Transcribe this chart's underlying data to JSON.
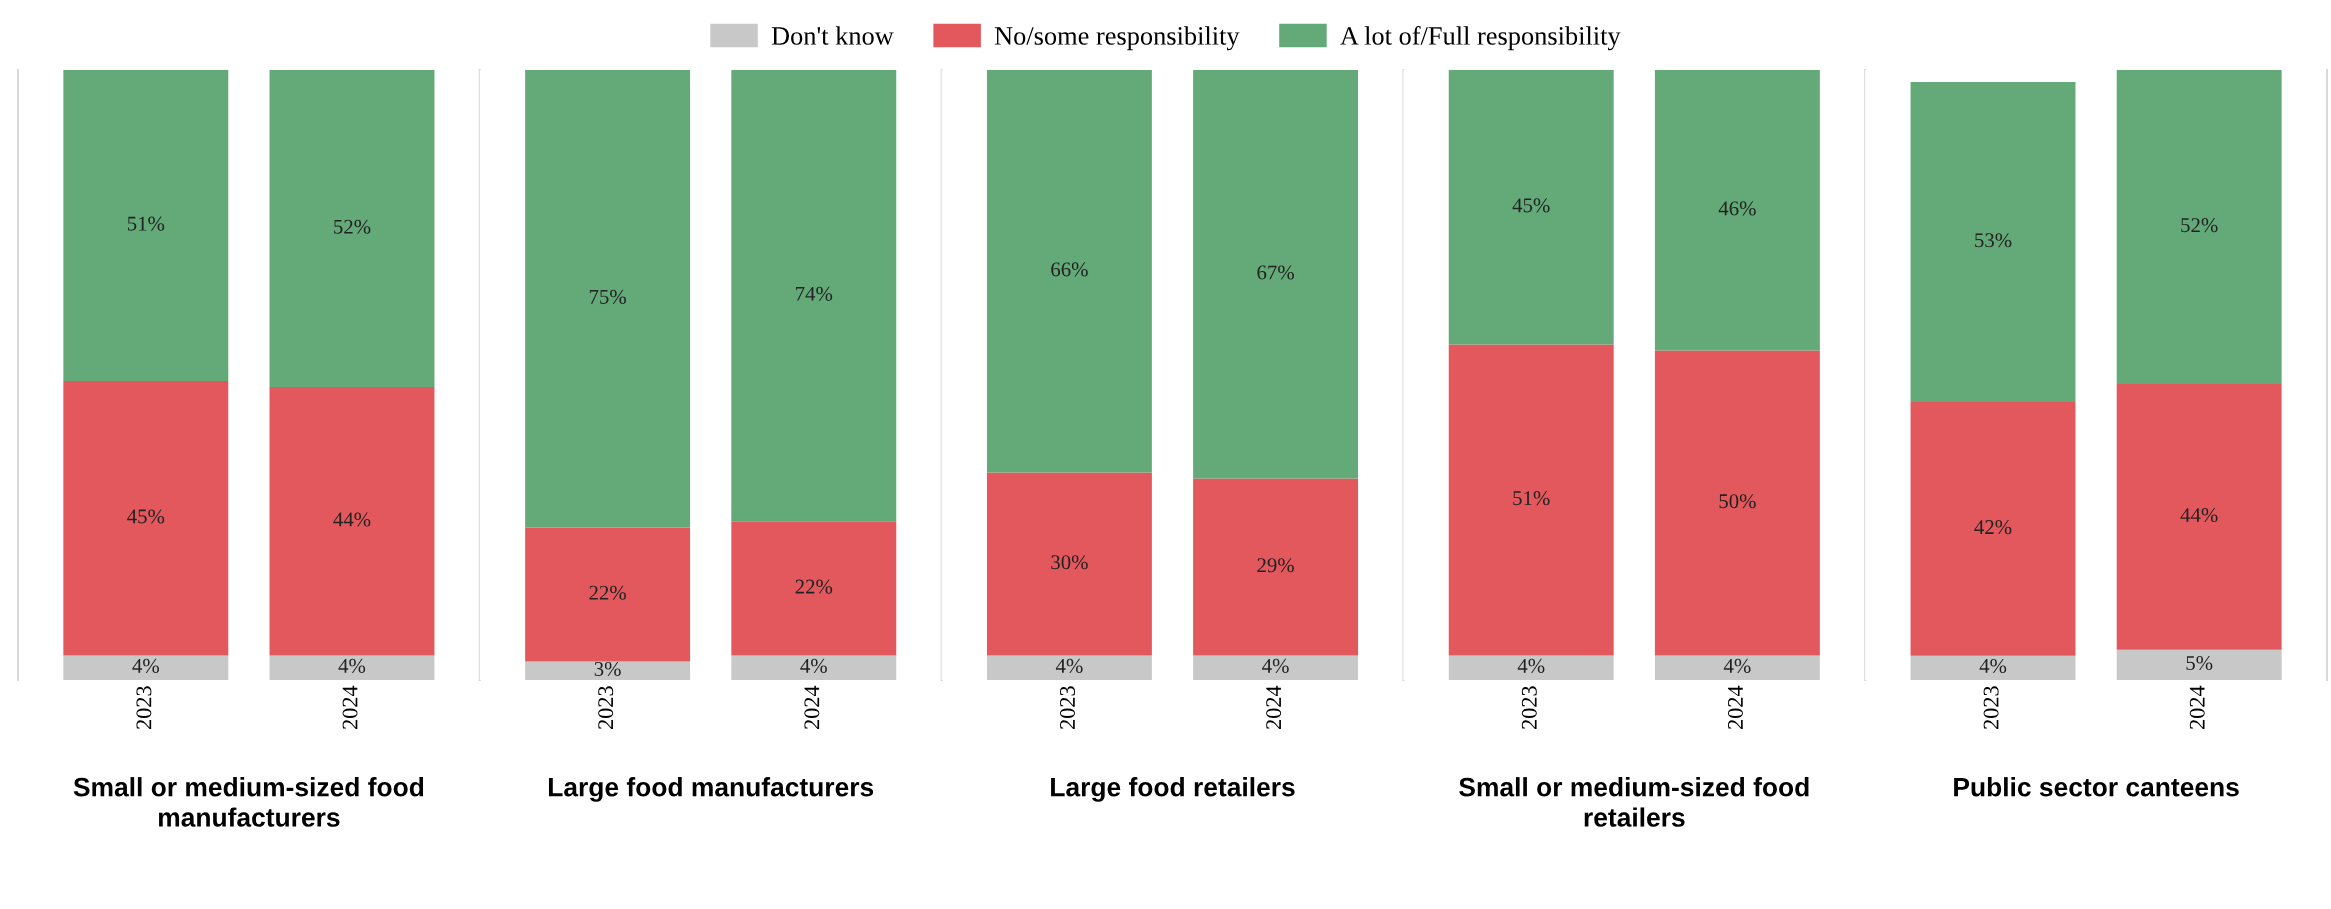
{
  "chart_data": [
    {
      "type": "bar",
      "stacked": true,
      "xlabel": "Small or medium-sized food manufacturers",
      "categories": [
        "2023",
        "2024"
      ],
      "tick_labels": "x",
      "legend": "top",
      "grid": false,
      "series": [
        {
          "name": "Don't know",
          "color": "#c8c8c8",
          "values": [
            4,
            4
          ],
          "value_labels": [
            "4%",
            "4%"
          ]
        },
        {
          "name": "No/some responsibility",
          "color": "#e2585d",
          "values": [
            45,
            44
          ],
          "value_labels": [
            "45%",
            "44%"
          ]
        },
        {
          "name": "A lot of/Full responsibility",
          "color": "#63aa78",
          "values": [
            51,
            52
          ],
          "value_labels": [
            "51%",
            "52%"
          ]
        }
      ]
    },
    {
      "type": "bar",
      "stacked": true,
      "xlabel": "Large food manufacturers",
      "categories": [
        "2023",
        "2024"
      ],
      "tick_labels": "x",
      "grid": false,
      "series": [
        {
          "color": "#c8c8c8",
          "values": [
            3,
            4
          ],
          "value_labels": [
            "3%",
            "4%"
          ]
        },
        {
          "color": "#e2585d",
          "values": [
            22,
            22
          ],
          "value_labels": [
            "22%",
            "22%"
          ]
        },
        {
          "color": "#63aa78",
          "values": [
            75,
            74
          ],
          "value_labels": [
            "75%",
            "74%"
          ]
        }
      ]
    },
    {
      "type": "bar",
      "stacked": true,
      "xlabel": "Large food retailers",
      "categories": [
        "2023",
        "2024"
      ],
      "tick_labels": "x",
      "grid": false,
      "series": [
        {
          "color": "#c8c8c8",
          "values": [
            4,
            4
          ],
          "value_labels": [
            "4%",
            "4%"
          ]
        },
        {
          "color": "#e2585d",
          "values": [
            30,
            29
          ],
          "value_labels": [
            "30%",
            "29%"
          ]
        },
        {
          "color": "#63aa78",
          "values": [
            66,
            67
          ],
          "value_labels": [
            "66%",
            "67%"
          ]
        }
      ]
    },
    {
      "type": "bar",
      "stacked": true,
      "xlabel": "Small or medium-sized food retailers",
      "categories": [
        "2023",
        "2024"
      ],
      "tick_labels": "x",
      "grid": false,
      "series": [
        {
          "color": "#c8c8c8",
          "values": [
            4,
            4
          ],
          "value_labels": [
            "4%",
            "4%"
          ]
        },
        {
          "color": "#e2585d",
          "values": [
            51,
            50
          ],
          "value_labels": [
            "51%",
            "50%"
          ]
        },
        {
          "color": "#63aa78",
          "values": [
            45,
            46
          ],
          "value_labels": [
            "45%",
            "46%"
          ]
        }
      ]
    },
    {
      "type": "bar",
      "stacked": true,
      "xlabel": "Public sector canteens",
      "categories": [
        "2023",
        "2024"
      ],
      "tick_labels": "x",
      "grid": false,
      "series": [
        {
          "color": "#c8c8c8",
          "values": [
            4,
            5
          ],
          "value_labels": [
            "4%",
            "5%"
          ]
        },
        {
          "color": "#e2585d",
          "values": [
            42,
            44
          ],
          "value_labels": [
            "42%",
            "44%"
          ]
        },
        {
          "color": "#63aa78",
          "values": [
            53,
            52
          ],
          "value_labels": [
            "53%",
            "52%"
          ]
        }
      ]
    }
  ]
}
